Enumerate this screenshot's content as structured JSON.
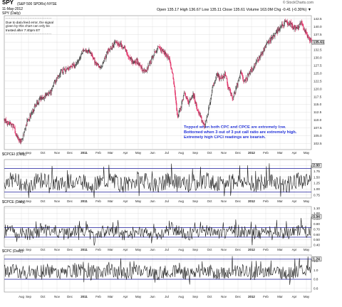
{
  "header": {
    "ticker": "SPY",
    "ticker_name": "(S&P 500 SPDRs)  NYSE",
    "date": "11-May-2012",
    "subtitle": "SPY (Daily)",
    "ohlc": "Open 135.17  High 136.67  Low 135.11  Close 135.61  Volume 163.0M  Chg -0.41 (-0.30%) ▼",
    "copyright": "© StockCharts.com"
  },
  "notes": {
    "warning_lines": [
      "Due to data feed error, the signal",
      "given by this chart can only be",
      "trusted after 7:40pm ET"
    ],
    "dashes": "- - - - - - - - - - - - - - - - - - - - - - - - - - -",
    "blue_lines": [
      "Topped when both CPC and CPCE are extremely low.",
      "Bottomed when 3 out of 3 put call ratio are extremely high.",
      "Extremely high CPCI readings are bearish."
    ]
  },
  "colors": {
    "up": "#222222",
    "down": "#e0245e",
    "guide": "#3a3aa8",
    "grid": "#d9d9d9",
    "line": "#111111",
    "last_box": "#f2f2f2"
  },
  "chart_data": [
    {
      "type": "candlestick",
      "title": "SPY (Daily)",
      "x_ticks": [
        "Aug",
        "Sep",
        "Oct",
        "Nov",
        "Dec",
        "2011",
        "Feb",
        "Mar",
        "Apr",
        "May",
        "Jun",
        "Jul",
        "Aug",
        "Sep",
        "Oct",
        "Nov",
        "Dec",
        "2012",
        "Feb",
        "Mar",
        "Apr",
        "May"
      ],
      "y_ticks": [
        102.5,
        105.0,
        107.5,
        110.0,
        112.5,
        115.0,
        117.5,
        120.0,
        122.5,
        125.0,
        127.5,
        130.0,
        132.5,
        135.0,
        137.5,
        140.0,
        142.5
      ],
      "ylim": [
        100.5,
        143.5
      ],
      "last_value": "135.61",
      "anchors": [
        [
          0,
          110.5
        ],
        [
          4,
          109
        ],
        [
          12,
          108.6
        ],
        [
          16,
          108
        ],
        [
          22,
          104.5
        ],
        [
          30,
          103
        ],
        [
          38,
          108.5
        ],
        [
          50,
          113
        ],
        [
          64,
          117
        ],
        [
          80,
          118.5
        ],
        [
          92,
          123.5
        ],
        [
          100,
          125.5
        ],
        [
          112,
          126.5
        ],
        [
          124,
          127.5
        ],
        [
          130,
          129.5
        ],
        [
          140,
          133
        ],
        [
          152,
          131.5
        ],
        [
          160,
          128.5
        ],
        [
          170,
          126.5
        ],
        [
          182,
          132
        ],
        [
          196,
          135
        ],
        [
          210,
          133.5
        ],
        [
          218,
          131
        ],
        [
          226,
          128.5
        ],
        [
          234,
          129
        ],
        [
          242,
          126.5
        ],
        [
          248,
          125.5
        ],
        [
          256,
          128
        ],
        [
          264,
          131.5
        ],
        [
          270,
          133.5
        ],
        [
          280,
          132
        ],
        [
          290,
          129.5
        ],
        [
          296,
          125
        ],
        [
          300,
          118.5
        ],
        [
          304,
          111
        ],
        [
          310,
          113.5
        ],
        [
          316,
          119
        ],
        [
          324,
          115.5
        ],
        [
          332,
          118.5
        ],
        [
          340,
          113
        ],
        [
          346,
          110.5
        ],
        [
          352,
          107.5
        ],
        [
          358,
          112.5
        ],
        [
          366,
          120
        ],
        [
          374,
          125
        ],
        [
          380,
          123
        ],
        [
          388,
          125
        ],
        [
          394,
          120.5
        ],
        [
          402,
          117
        ],
        [
          408,
          120.5
        ],
        [
          416,
          125
        ],
        [
          422,
          122
        ],
        [
          428,
          124
        ],
        [
          434,
          126
        ],
        [
          442,
          128
        ],
        [
          452,
          131
        ],
        [
          464,
          135
        ],
        [
          474,
          137
        ],
        [
          486,
          140
        ],
        [
          494,
          141.5
        ],
        [
          502,
          141
        ],
        [
          510,
          139.5
        ],
        [
          516,
          139.5
        ],
        [
          522,
          141
        ],
        [
          528,
          139
        ],
        [
          534,
          136.5
        ],
        [
          540,
          135.6
        ]
      ]
    },
    {
      "type": "line",
      "title": "$CPCEI (Daily)",
      "y_ticks": [
        0.75,
        1.0,
        1.25,
        1.5,
        1.75,
        2.0
      ],
      "ylim": [
        0.62,
        2.25
      ],
      "guides": [
        0.87,
        1.875
      ],
      "last_value": "2.00",
      "base": 1.28,
      "amp": 0.35,
      "seed": 7
    },
    {
      "type": "line",
      "title": "$CPCE (Daily)",
      "y_ticks": [
        0.4,
        0.5,
        0.6,
        0.7,
        0.8,
        0.9,
        1.0,
        1.1
      ],
      "ylim": [
        0.36,
        1.13
      ],
      "guides": [
        0.55,
        0.73
      ],
      "last_value": "0.94",
      "base": 0.64,
      "amp": 0.12,
      "seed": 21
    },
    {
      "type": "line",
      "title": "$CPC (Daily)",
      "y_ticks": [
        0.6,
        0.8,
        1.0,
        1.2
      ],
      "ylim": [
        0.52,
        1.33
      ],
      "guides": [
        0.8,
        1.24
      ],
      "last_value": "1.24",
      "base": 0.96,
      "amp": 0.15,
      "seed": 43
    }
  ]
}
